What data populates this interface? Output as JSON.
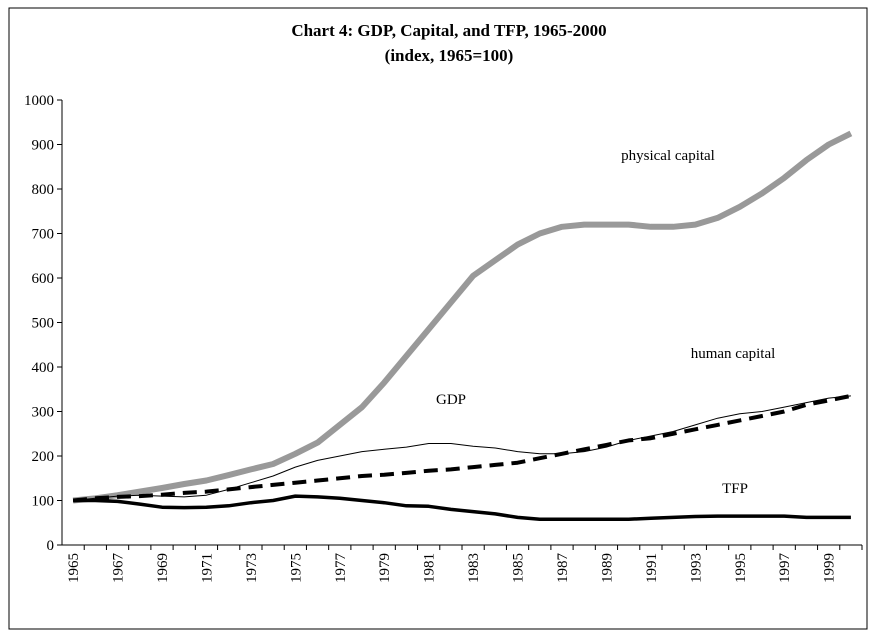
{
  "chart_data": {
    "type": "line",
    "title": "Chart 4: GDP, Capital, and TFP, 1965-2000",
    "subtitle": "(index, 1965=100)",
    "categories": [
      "1965",
      null,
      "1967",
      null,
      "1969",
      null,
      "1971",
      null,
      "1973",
      null,
      "1975",
      null,
      "1977",
      null,
      "1979",
      null,
      "1981",
      null,
      "1983",
      null,
      "1985",
      null,
      "1987",
      null,
      "1989",
      null,
      "1991",
      null,
      "1993",
      null,
      "1995",
      null,
      "1997",
      null,
      "1999",
      null
    ],
    "series": [
      {
        "name": "physical capital",
        "color": "#999999",
        "width": 6,
        "dash": "none",
        "values": [
          100,
          105,
          112,
          120,
          128,
          137,
          145,
          157,
          170,
          182,
          205,
          230,
          270,
          310,
          365,
          425,
          485,
          545,
          605,
          640,
          675,
          700,
          715,
          720,
          720,
          720,
          715,
          715,
          720,
          735,
          760,
          790,
          825,
          865,
          900,
          925
        ]
      },
      {
        "name": "human capital",
        "color": "#000000",
        "width": 4,
        "dash": "14 8",
        "values": [
          100,
          105,
          108,
          110,
          113,
          117,
          120,
          125,
          130,
          135,
          140,
          145,
          150,
          155,
          158,
          162,
          167,
          170,
          175,
          180,
          185,
          195,
          205,
          215,
          225,
          235,
          240,
          250,
          260,
          270,
          280,
          290,
          300,
          315,
          325,
          335
        ]
      },
      {
        "name": "GDP",
        "color": "#000000",
        "width": 1,
        "dash": "none",
        "values": [
          100,
          105,
          110,
          112,
          110,
          108,
          112,
          125,
          140,
          155,
          175,
          190,
          200,
          210,
          215,
          220,
          228,
          228,
          222,
          218,
          210,
          205,
          205,
          210,
          220,
          235,
          245,
          255,
          270,
          285,
          295,
          300,
          310,
          320,
          330,
          335
        ]
      },
      {
        "name": "TFP",
        "color": "#000000",
        "width": 3.5,
        "dash": "none",
        "values": [
          100,
          100,
          98,
          92,
          85,
          84,
          85,
          88,
          95,
          100,
          110,
          108,
          105,
          100,
          95,
          88,
          87,
          80,
          75,
          70,
          62,
          58,
          58,
          58,
          58,
          58,
          60,
          62,
          64,
          65,
          65,
          65,
          65,
          62,
          62,
          62
        ]
      }
    ],
    "ylim": [
      0,
      1000
    ],
    "yticks": [
      0,
      100,
      200,
      300,
      400,
      500,
      600,
      700,
      800,
      900,
      1000
    ],
    "grid": false
  }
}
